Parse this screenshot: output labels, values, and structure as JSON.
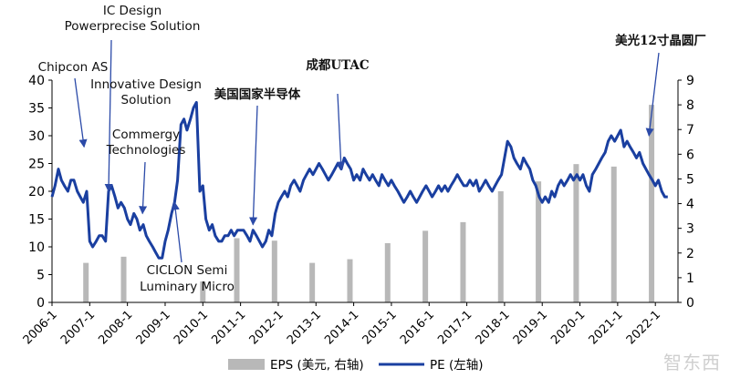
{
  "chart_data": {
    "type": "line",
    "x_labels": [
      "2006-1",
      "2007-1",
      "2008-1",
      "2009-1",
      "2010-1",
      "2011-1",
      "2012-1",
      "2013-1",
      "2014-1",
      "2015-1",
      "2016-1",
      "2017-1",
      "2018-1",
      "2019-1",
      "2020-1",
      "2021-1",
      "2022-1"
    ],
    "y_left": {
      "min": 0,
      "max": 40,
      "ticks": [
        0,
        5,
        10,
        15,
        20,
        25,
        30,
        35,
        40
      ]
    },
    "y_right": {
      "min": 0,
      "max": 9,
      "ticks": [
        0,
        1,
        2,
        3,
        4,
        5,
        6,
        7,
        8,
        9
      ]
    },
    "series": [
      {
        "name": "EPS (美元, 右轴)",
        "kind": "bar",
        "axis": "right",
        "color": "#b8b8b8",
        "points": [
          {
            "t": 2006.9,
            "v": 1.6
          },
          {
            "t": 2007.9,
            "v": 1.85
          },
          {
            "t": 2010.0,
            "v": 0.85
          },
          {
            "t": 2010.9,
            "v": 2.6
          },
          {
            "t": 2011.9,
            "v": 2.5
          },
          {
            "t": 2012.9,
            "v": 1.6
          },
          {
            "t": 2013.9,
            "v": 1.75
          },
          {
            "t": 2014.9,
            "v": 2.4
          },
          {
            "t": 2015.9,
            "v": 2.9
          },
          {
            "t": 2016.9,
            "v": 3.25
          },
          {
            "t": 2017.9,
            "v": 4.5
          },
          {
            "t": 2018.9,
            "v": 4.9
          },
          {
            "t": 2019.9,
            "v": 5.6
          },
          {
            "t": 2020.9,
            "v": 5.5
          },
          {
            "t": 2021.9,
            "v": 8.0
          }
        ]
      },
      {
        "name": "PE (左轴)",
        "kind": "line",
        "axis": "left",
        "color": "#1a3fa0",
        "points": [
          {
            "t": 2006.0,
            "v": 19
          },
          {
            "t": 2006.08,
            "v": 21
          },
          {
            "t": 2006.17,
            "v": 24
          },
          {
            "t": 2006.25,
            "v": 22
          },
          {
            "t": 2006.33,
            "v": 21
          },
          {
            "t": 2006.42,
            "v": 20
          },
          {
            "t": 2006.5,
            "v": 22
          },
          {
            "t": 2006.58,
            "v": 22
          },
          {
            "t": 2006.67,
            "v": 20
          },
          {
            "t": 2006.75,
            "v": 19
          },
          {
            "t": 2006.83,
            "v": 18
          },
          {
            "t": 2006.92,
            "v": 20
          },
          {
            "t": 2007.0,
            "v": 11
          },
          {
            "t": 2007.08,
            "v": 10
          },
          {
            "t": 2007.17,
            "v": 11
          },
          {
            "t": 2007.25,
            "v": 12
          },
          {
            "t": 2007.33,
            "v": 12
          },
          {
            "t": 2007.42,
            "v": 11
          },
          {
            "t": 2007.5,
            "v": 20
          },
          {
            "t": 2007.58,
            "v": 21
          },
          {
            "t": 2007.67,
            "v": 19
          },
          {
            "t": 2007.75,
            "v": 17
          },
          {
            "t": 2007.83,
            "v": 18
          },
          {
            "t": 2007.92,
            "v": 17
          },
          {
            "t": 2008.0,
            "v": 15
          },
          {
            "t": 2008.08,
            "v": 14
          },
          {
            "t": 2008.17,
            "v": 16
          },
          {
            "t": 2008.25,
            "v": 15
          },
          {
            "t": 2008.33,
            "v": 13
          },
          {
            "t": 2008.42,
            "v": 14
          },
          {
            "t": 2008.5,
            "v": 12
          },
          {
            "t": 2008.58,
            "v": 11
          },
          {
            "t": 2008.67,
            "v": 10
          },
          {
            "t": 2008.75,
            "v": 9
          },
          {
            "t": 2008.83,
            "v": 8
          },
          {
            "t": 2008.92,
            "v": 8
          },
          {
            "t": 2009.0,
            "v": 11
          },
          {
            "t": 2009.08,
            "v": 13
          },
          {
            "t": 2009.17,
            "v": 16
          },
          {
            "t": 2009.25,
            "v": 18
          },
          {
            "t": 2009.33,
            "v": 22
          },
          {
            "t": 2009.42,
            "v": 32
          },
          {
            "t": 2009.5,
            "v": 33
          },
          {
            "t": 2009.58,
            "v": 31
          },
          {
            "t": 2009.67,
            "v": 33
          },
          {
            "t": 2009.75,
            "v": 35
          },
          {
            "t": 2009.83,
            "v": 36
          },
          {
            "t": 2009.92,
            "v": 20
          },
          {
            "t": 2010.0,
            "v": 21
          },
          {
            "t": 2010.08,
            "v": 15
          },
          {
            "t": 2010.17,
            "v": 13
          },
          {
            "t": 2010.25,
            "v": 14
          },
          {
            "t": 2010.33,
            "v": 12
          },
          {
            "t": 2010.42,
            "v": 11
          },
          {
            "t": 2010.5,
            "v": 11
          },
          {
            "t": 2010.58,
            "v": 12
          },
          {
            "t": 2010.67,
            "v": 12
          },
          {
            "t": 2010.75,
            "v": 13
          },
          {
            "t": 2010.83,
            "v": 12
          },
          {
            "t": 2010.92,
            "v": 13
          },
          {
            "t": 2011.0,
            "v": 13
          },
          {
            "t": 2011.08,
            "v": 13
          },
          {
            "t": 2011.17,
            "v": 12
          },
          {
            "t": 2011.25,
            "v": 11
          },
          {
            "t": 2011.33,
            "v": 13
          },
          {
            "t": 2011.42,
            "v": 12
          },
          {
            "t": 2011.5,
            "v": 11
          },
          {
            "t": 2011.58,
            "v": 10
          },
          {
            "t": 2011.67,
            "v": 11
          },
          {
            "t": 2011.75,
            "v": 13
          },
          {
            "t": 2011.83,
            "v": 12
          },
          {
            "t": 2011.92,
            "v": 16
          },
          {
            "t": 2012.0,
            "v": 18
          },
          {
            "t": 2012.08,
            "v": 19
          },
          {
            "t": 2012.17,
            "v": 20
          },
          {
            "t": 2012.25,
            "v": 19
          },
          {
            "t": 2012.33,
            "v": 21
          },
          {
            "t": 2012.42,
            "v": 22
          },
          {
            "t": 2012.5,
            "v": 21
          },
          {
            "t": 2012.58,
            "v": 20
          },
          {
            "t": 2012.67,
            "v": 22
          },
          {
            "t": 2012.75,
            "v": 23
          },
          {
            "t": 2012.83,
            "v": 24
          },
          {
            "t": 2012.92,
            "v": 23
          },
          {
            "t": 2013.0,
            "v": 24
          },
          {
            "t": 2013.08,
            "v": 25
          },
          {
            "t": 2013.17,
            "v": 24
          },
          {
            "t": 2013.25,
            "v": 23
          },
          {
            "t": 2013.33,
            "v": 22
          },
          {
            "t": 2013.42,
            "v": 23
          },
          {
            "t": 2013.5,
            "v": 24
          },
          {
            "t": 2013.58,
            "v": 25
          },
          {
            "t": 2013.67,
            "v": 24
          },
          {
            "t": 2013.75,
            "v": 26
          },
          {
            "t": 2013.83,
            "v": 25
          },
          {
            "t": 2013.92,
            "v": 24
          },
          {
            "t": 2014.0,
            "v": 22
          },
          {
            "t": 2014.08,
            "v": 23
          },
          {
            "t": 2014.17,
            "v": 22
          },
          {
            "t": 2014.25,
            "v": 24
          },
          {
            "t": 2014.33,
            "v": 23
          },
          {
            "t": 2014.42,
            "v": 22
          },
          {
            "t": 2014.5,
            "v": 23
          },
          {
            "t": 2014.58,
            "v": 22
          },
          {
            "t": 2014.67,
            "v": 21
          },
          {
            "t": 2014.75,
            "v": 23
          },
          {
            "t": 2014.83,
            "v": 22
          },
          {
            "t": 2014.92,
            "v": 21
          },
          {
            "t": 2015.0,
            "v": 22
          },
          {
            "t": 2015.08,
            "v": 21
          },
          {
            "t": 2015.17,
            "v": 20
          },
          {
            "t": 2015.25,
            "v": 19
          },
          {
            "t": 2015.33,
            "v": 18
          },
          {
            "t": 2015.42,
            "v": 19
          },
          {
            "t": 2015.5,
            "v": 20
          },
          {
            "t": 2015.58,
            "v": 19
          },
          {
            "t": 2015.67,
            "v": 18
          },
          {
            "t": 2015.75,
            "v": 19
          },
          {
            "t": 2015.83,
            "v": 20
          },
          {
            "t": 2015.92,
            "v": 21
          },
          {
            "t": 2016.0,
            "v": 20
          },
          {
            "t": 2016.08,
            "v": 19
          },
          {
            "t": 2016.17,
            "v": 20
          },
          {
            "t": 2016.25,
            "v": 21
          },
          {
            "t": 2016.33,
            "v": 20
          },
          {
            "t": 2016.42,
            "v": 21
          },
          {
            "t": 2016.5,
            "v": 20
          },
          {
            "t": 2016.58,
            "v": 21
          },
          {
            "t": 2016.67,
            "v": 22
          },
          {
            "t": 2016.75,
            "v": 23
          },
          {
            "t": 2016.83,
            "v": 22
          },
          {
            "t": 2016.92,
            "v": 21
          },
          {
            "t": 2017.0,
            "v": 21
          },
          {
            "t": 2017.08,
            "v": 22
          },
          {
            "t": 2017.17,
            "v": 21
          },
          {
            "t": 2017.25,
            "v": 22
          },
          {
            "t": 2017.33,
            "v": 20
          },
          {
            "t": 2017.42,
            "v": 21
          },
          {
            "t": 2017.5,
            "v": 22
          },
          {
            "t": 2017.58,
            "v": 21
          },
          {
            "t": 2017.67,
            "v": 20
          },
          {
            "t": 2017.75,
            "v": 21
          },
          {
            "t": 2017.83,
            "v": 22
          },
          {
            "t": 2017.92,
            "v": 23
          },
          {
            "t": 2018.0,
            "v": 26
          },
          {
            "t": 2018.08,
            "v": 29
          },
          {
            "t": 2018.17,
            "v": 28
          },
          {
            "t": 2018.25,
            "v": 26
          },
          {
            "t": 2018.33,
            "v": 25
          },
          {
            "t": 2018.42,
            "v": 24
          },
          {
            "t": 2018.5,
            "v": 26
          },
          {
            "t": 2018.58,
            "v": 25
          },
          {
            "t": 2018.67,
            "v": 24
          },
          {
            "t": 2018.75,
            "v": 22
          },
          {
            "t": 2018.83,
            "v": 21
          },
          {
            "t": 2018.92,
            "v": 19
          },
          {
            "t": 2019.0,
            "v": 18
          },
          {
            "t": 2019.08,
            "v": 19
          },
          {
            "t": 2019.17,
            "v": 18
          },
          {
            "t": 2019.25,
            "v": 20
          },
          {
            "t": 2019.33,
            "v": 19
          },
          {
            "t": 2019.42,
            "v": 21
          },
          {
            "t": 2019.5,
            "v": 22
          },
          {
            "t": 2019.58,
            "v": 21
          },
          {
            "t": 2019.67,
            "v": 22
          },
          {
            "t": 2019.75,
            "v": 23
          },
          {
            "t": 2019.83,
            "v": 22
          },
          {
            "t": 2019.92,
            "v": 23
          },
          {
            "t": 2020.0,
            "v": 22
          },
          {
            "t": 2020.08,
            "v": 23
          },
          {
            "t": 2020.17,
            "v": 21
          },
          {
            "t": 2020.25,
            "v": 20
          },
          {
            "t": 2020.33,
            "v": 23
          },
          {
            "t": 2020.42,
            "v": 24
          },
          {
            "t": 2020.5,
            "v": 25
          },
          {
            "t": 2020.58,
            "v": 26
          },
          {
            "t": 2020.67,
            "v": 27
          },
          {
            "t": 2020.75,
            "v": 29
          },
          {
            "t": 2020.83,
            "v": 30
          },
          {
            "t": 2020.92,
            "v": 29
          },
          {
            "t": 2021.0,
            "v": 30
          },
          {
            "t": 2021.08,
            "v": 31
          },
          {
            "t": 2021.17,
            "v": 28
          },
          {
            "t": 2021.25,
            "v": 29
          },
          {
            "t": 2021.33,
            "v": 28
          },
          {
            "t": 2021.42,
            "v": 27
          },
          {
            "t": 2021.5,
            "v": 26
          },
          {
            "t": 2021.58,
            "v": 27
          },
          {
            "t": 2021.67,
            "v": 25
          },
          {
            "t": 2021.75,
            "v": 24
          },
          {
            "t": 2021.83,
            "v": 23
          },
          {
            "t": 2021.92,
            "v": 22
          },
          {
            "t": 2022.0,
            "v": 21
          },
          {
            "t": 2022.08,
            "v": 22
          },
          {
            "t": 2022.17,
            "v": 20
          },
          {
            "t": 2022.25,
            "v": 19
          },
          {
            "t": 2022.33,
            "v": 19
          }
        ]
      }
    ],
    "annotations": [
      {
        "label": [
          "Chipcon AS"
        ],
        "t": 2006.85,
        "arrow_to_v": 27
      },
      {
        "label": [
          "IC Design",
          "Powerprecise Solution"
        ],
        "t": 2007.5,
        "arrow_to_v": 19
      },
      {
        "label": [
          "Innovative Design",
          "Solution"
        ],
        "t": 2007.5,
        "arrow_to_v": 20
      },
      {
        "label": [
          "Commergy",
          "Technologies"
        ],
        "t": 2008.4,
        "arrow_to_v": 15
      },
      {
        "label": [
          "CICLON Semi",
          "Luminary Micro"
        ],
        "t": 2009.25,
        "arrow_to_v": 19
      },
      {
        "label": [
          "美国国家半导体"
        ],
        "t": 2011.33,
        "arrow_to_v": 13
      },
      {
        "label": [
          "成都UTAC"
        ],
        "t": 2013.67,
        "arrow_to_v": 23
      },
      {
        "label": [
          "美光12寸晶圆厂"
        ],
        "t": 2021.83,
        "arrow_to_v": 29
      }
    ],
    "legend": {
      "placement": "bottom",
      "items": [
        "EPS (美元, 右轴)",
        "PE (左轴)"
      ]
    }
  },
  "legend_labels": {
    "eps": "EPS (美元, 右轴)",
    "pe": "PE (左轴)"
  },
  "watermark": "智东西"
}
